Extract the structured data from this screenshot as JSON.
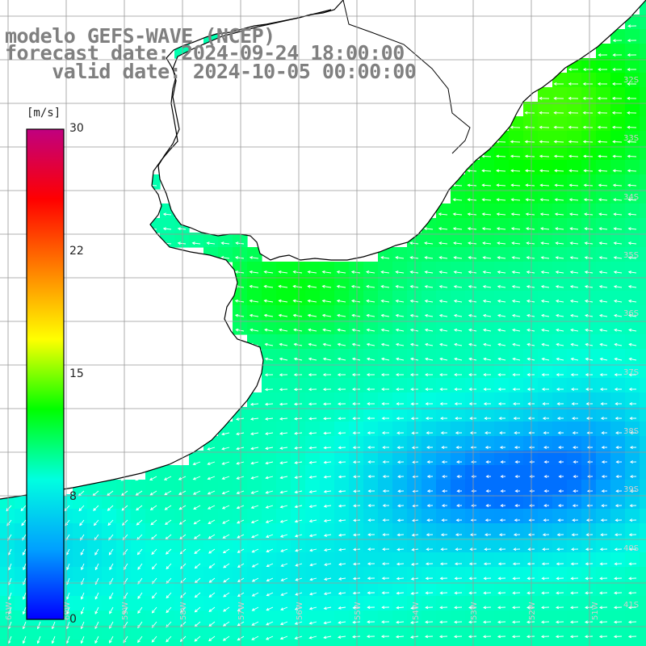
{
  "title": {
    "line1": "modelo GEFS-WAVE (NCEP)",
    "line2": "forecast date: 2024-09-24 18:00:00",
    "line3": "valid date: 2024-10-05 00:00:00"
  },
  "colorbar": {
    "unit": "[m/s]",
    "ticks": [
      "30",
      "22",
      "15",
      "8",
      "0"
    ],
    "tick_values": [
      30,
      22,
      15,
      8,
      0
    ],
    "colors": [
      "#0000ff",
      "#00a0ff",
      "#00ffe0",
      "#00ff00",
      "#ffff00",
      "#ff8000",
      "#ff0000",
      "#c00080"
    ]
  },
  "lat_labels": [
    "32S",
    "33S",
    "34S",
    "35S",
    "36S",
    "37S",
    "38S",
    "39S",
    "40S",
    "41S"
  ],
  "lon_labels": [
    "61W",
    "60W",
    "59W",
    "58W",
    "57W",
    "56W",
    "55W",
    "54W",
    "53W",
    "52W",
    "51W"
  ],
  "field": {
    "variable": "wind speed",
    "units": "m/s",
    "land_color": "#ffffff",
    "grid_color": "#999999"
  }
}
